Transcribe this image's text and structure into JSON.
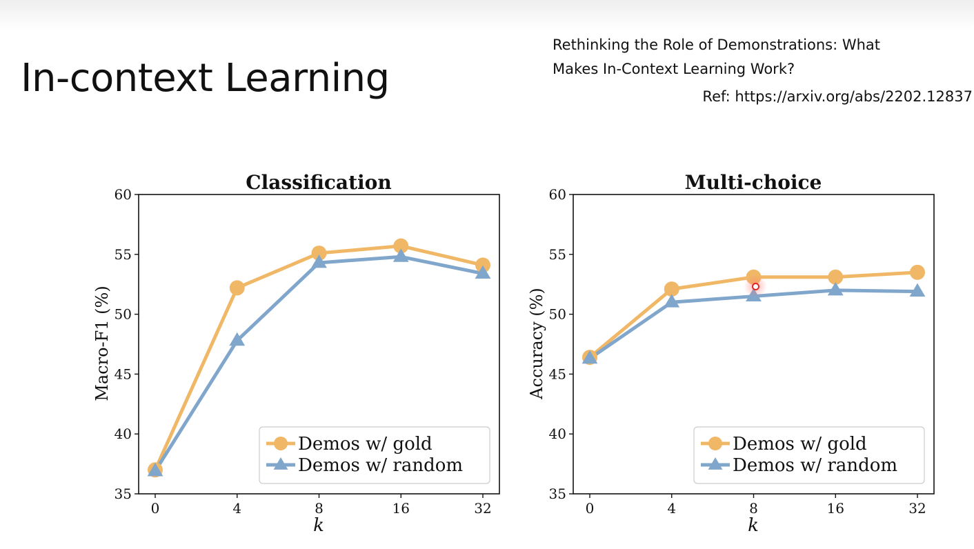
{
  "slide": {
    "title": "In-context Learning",
    "paper_title_line1": "Rethinking the Role of Demonstrations: What",
    "paper_title_line2": "Makes In-Context Learning Work?",
    "ref": "Ref: https://arxiv.org/abs/2202.12837"
  },
  "colors": {
    "gold": "#f0b866",
    "random": "#80a6cc"
  },
  "chart_data": [
    {
      "type": "line",
      "title": "Classification",
      "xlabel": "k",
      "ylabel": "Macro-F1 (%)",
      "categories": [
        "0",
        "4",
        "8",
        "16",
        "32"
      ],
      "ylim": [
        35,
        60
      ],
      "yticks": [
        35,
        40,
        45,
        50,
        55,
        60
      ],
      "legend_position": "lower-right",
      "series": [
        {
          "name": "Demos w/ gold",
          "marker": "circle",
          "values": [
            37.0,
            52.2,
            55.1,
            55.7,
            54.1
          ]
        },
        {
          "name": "Demos w/ random",
          "marker": "triangle",
          "values": [
            36.9,
            47.8,
            54.3,
            54.8,
            53.4
          ]
        }
      ]
    },
    {
      "type": "line",
      "title": "Multi-choice",
      "xlabel": "k",
      "ylabel": "Accuracy (%)",
      "categories": [
        "0",
        "4",
        "8",
        "16",
        "32"
      ],
      "ylim": [
        35,
        60
      ],
      "yticks": [
        35,
        40,
        45,
        50,
        55,
        60
      ],
      "legend_position": "lower-right",
      "series": [
        {
          "name": "Demos w/ gold",
          "marker": "circle",
          "values": [
            46.4,
            52.1,
            53.1,
            53.1,
            53.5
          ]
        },
        {
          "name": "Demos w/ random",
          "marker": "triangle",
          "values": [
            46.3,
            51.0,
            51.5,
            52.0,
            51.9
          ]
        }
      ]
    }
  ]
}
